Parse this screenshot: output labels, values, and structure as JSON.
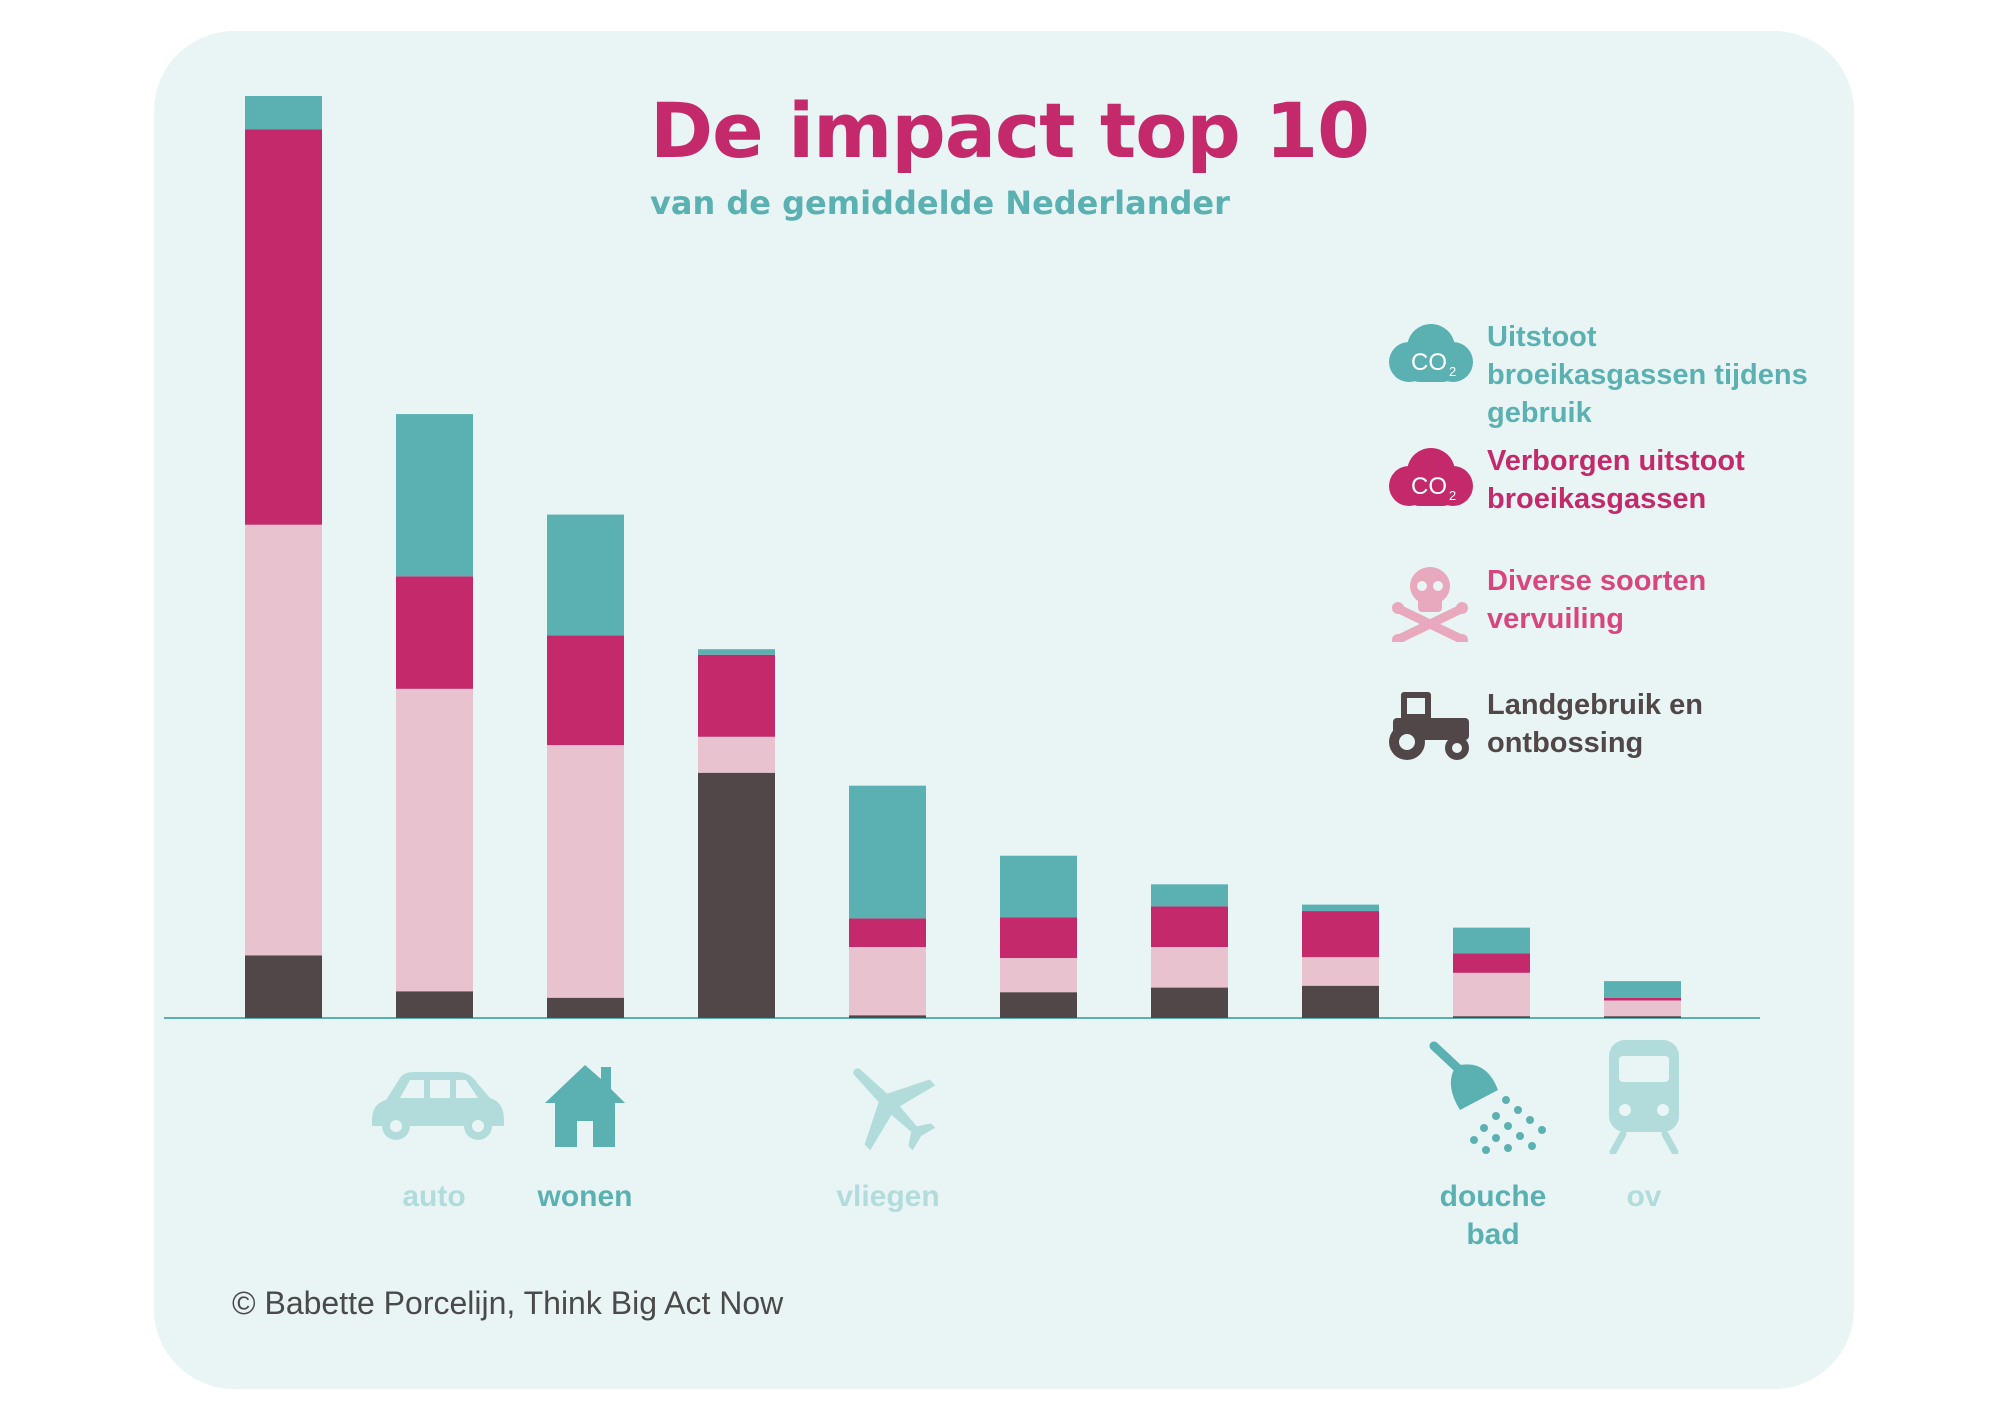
{
  "colors": {
    "background": "#e9f5f5",
    "teal": "#5bb1b1",
    "magenta": "#c42a6b",
    "pink": "#e8c2cf",
    "dark": "#524748",
    "muted_teal": "#b2dcdc"
  },
  "credit": "© Babette Porcelijn, Think Big Act Now",
  "legend": [
    {
      "icon": "co2-cloud-icon",
      "label": "Uitstoot broeikasgassen tijdens gebruik",
      "color": "#5bb1b1"
    },
    {
      "icon": "co2-cloud-icon",
      "label": "Verborgen uitstoot broeikasgassen",
      "color": "#c42a6b"
    },
    {
      "icon": "skull-crossbones-icon",
      "label": "Diverse soorten vervuiling",
      "color": "#d9457f"
    },
    {
      "icon": "tractor-icon",
      "label": "Landgebruik en ontbossing",
      "color": "#524748"
    }
  ],
  "categories": [
    {
      "label": "",
      "icon": ""
    },
    {
      "label": "auto",
      "icon": "car-icon",
      "emphasis": false
    },
    {
      "label": "wonen",
      "icon": "house-icon",
      "emphasis": true
    },
    {
      "label": "",
      "icon": ""
    },
    {
      "label": "vliegen",
      "icon": "airplane-icon",
      "emphasis": false
    },
    {
      "label": "",
      "icon": ""
    },
    {
      "label": "",
      "icon": ""
    },
    {
      "label": "",
      "icon": ""
    },
    {
      "label": "douche\nbad",
      "icon": "shower-icon",
      "emphasis": true
    },
    {
      "label": "ov",
      "icon": "train-icon",
      "emphasis": false
    }
  ],
  "chart_data": {
    "type": "bar",
    "stacked": true,
    "title": "De impact top 10",
    "subtitle": "van de gemiddelde Nederlander",
    "xlabel": "",
    "ylabel": "",
    "ylim": [
      0,
      100
    ],
    "categories": [
      "",
      "auto",
      "wonen",
      "",
      "vliegen",
      "",
      "",
      "",
      "douche bad",
      "ov"
    ],
    "series": [
      {
        "name": "Landgebruik en ontbossing",
        "color": "#524748",
        "values": [
          6.8,
          2.9,
          2.2,
          26.6,
          0.3,
          2.8,
          3.3,
          3.5,
          0.2,
          0.2
        ]
      },
      {
        "name": "Diverse soorten vervuiling",
        "color": "#e8c2cf",
        "values": [
          46.7,
          32.8,
          27.4,
          3.9,
          7.4,
          3.7,
          4.4,
          3.1,
          4.7,
          1.7
        ]
      },
      {
        "name": "Verborgen uitstoot broeikasgassen",
        "color": "#c42a6b",
        "values": [
          42.9,
          12.2,
          11.9,
          8.9,
          3.1,
          4.4,
          4.4,
          5.0,
          2.1,
          0.3
        ]
      },
      {
        "name": "Uitstoot broeikasgassen tijdens gebruik",
        "color": "#5bb1b1",
        "values": [
          3.6,
          17.6,
          13.1,
          0.6,
          14.4,
          6.7,
          2.4,
          0.7,
          2.8,
          1.8
        ]
      }
    ],
    "grid": false,
    "legend": "right"
  }
}
